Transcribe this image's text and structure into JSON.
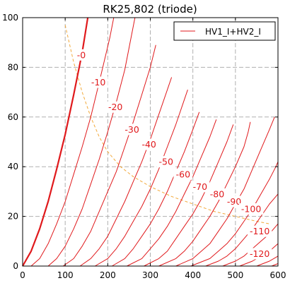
{
  "chart_data": {
    "type": "line",
    "title": "RK25,802 (triode)",
    "xlabel": "",
    "ylabel": "",
    "xlim": [
      0,
      600
    ],
    "ylim": [
      0,
      100
    ],
    "x_ticks": [
      "0",
      "100",
      "200",
      "300",
      "400",
      "500",
      "600"
    ],
    "y_ticks": [
      "0",
      "20",
      "40",
      "60",
      "80",
      "100"
    ],
    "grid": true,
    "legend": {
      "position": "top-right",
      "entries": [
        "HV1_I+HV2_I"
      ]
    },
    "colors": {
      "curves": "#e0191c",
      "load_line": "#f2a93a",
      "grid": "#b0b0b0"
    },
    "series": [
      {
        "name": "HV1_I+HV2_I",
        "grid_voltage": "-0",
        "highlight": true,
        "points": [
          [
            0,
            0
          ],
          [
            20,
            6
          ],
          [
            40,
            15
          ],
          [
            60,
            26
          ],
          [
            80,
            39
          ],
          [
            100,
            53
          ],
          [
            120,
            69
          ],
          [
            140,
            86
          ],
          [
            153,
            100
          ]
        ]
      },
      {
        "grid_voltage": "-10",
        "points": [
          [
            20,
            0
          ],
          [
            40,
            3
          ],
          [
            60,
            9
          ],
          [
            80,
            17
          ],
          [
            100,
            26
          ],
          [
            120,
            37
          ],
          [
            140,
            48
          ],
          [
            160,
            60
          ],
          [
            180,
            74
          ],
          [
            205,
            92
          ],
          [
            214,
            100
          ]
        ]
      },
      {
        "grid_voltage": "-20",
        "points": [
          [
            60,
            0
          ],
          [
            80,
            3
          ],
          [
            100,
            8
          ],
          [
            120,
            15
          ],
          [
            140,
            23
          ],
          [
            160,
            33
          ],
          [
            180,
            43
          ],
          [
            200,
            54
          ],
          [
            220,
            66
          ],
          [
            240,
            79
          ],
          [
            264,
            100
          ]
        ]
      },
      {
        "grid_voltage": "-30",
        "points": [
          [
            95,
            0
          ],
          [
            120,
            3
          ],
          [
            140,
            8
          ],
          [
            160,
            14
          ],
          [
            180,
            22
          ],
          [
            200,
            30
          ],
          [
            220,
            38
          ],
          [
            240,
            48
          ],
          [
            260,
            58
          ],
          [
            280,
            69
          ],
          [
            300,
            80
          ],
          [
            313,
            89
          ]
        ]
      },
      {
        "grid_voltage": "-40",
        "points": [
          [
            135,
            0
          ],
          [
            160,
            3
          ],
          [
            180,
            7
          ],
          [
            200,
            12
          ],
          [
            220,
            19
          ],
          [
            240,
            26
          ],
          [
            260,
            34
          ],
          [
            280,
            42
          ],
          [
            300,
            51
          ],
          [
            320,
            61
          ],
          [
            340,
            71
          ],
          [
            350,
            76
          ]
        ]
      },
      {
        "grid_voltage": "-50",
        "points": [
          [
            170,
            0
          ],
          [
            200,
            3
          ],
          [
            220,
            7
          ],
          [
            240,
            12
          ],
          [
            260,
            18
          ],
          [
            280,
            24
          ],
          [
            300,
            31
          ],
          [
            320,
            39
          ],
          [
            340,
            48
          ],
          [
            360,
            57
          ],
          [
            380,
            67
          ],
          [
            388,
            71
          ]
        ]
      },
      {
        "grid_voltage": "-60",
        "points": [
          [
            210,
            0
          ],
          [
            240,
            3
          ],
          [
            260,
            7
          ],
          [
            280,
            12
          ],
          [
            300,
            17
          ],
          [
            320,
            23
          ],
          [
            340,
            30
          ],
          [
            360,
            38
          ],
          [
            380,
            46
          ],
          [
            400,
            55
          ],
          [
            415,
            62
          ]
        ]
      },
      {
        "grid_voltage": "-70",
        "points": [
          [
            245,
            0
          ],
          [
            280,
            3
          ],
          [
            300,
            7
          ],
          [
            320,
            11
          ],
          [
            340,
            16
          ],
          [
            360,
            22
          ],
          [
            380,
            29
          ],
          [
            400,
            36
          ],
          [
            420,
            44
          ],
          [
            440,
            52
          ],
          [
            455,
            59
          ]
        ]
      },
      {
        "grid_voltage": "-80",
        "points": [
          [
            285,
            0
          ],
          [
            320,
            3
          ],
          [
            340,
            6
          ],
          [
            360,
            11
          ],
          [
            380,
            16
          ],
          [
            400,
            21
          ],
          [
            420,
            27
          ],
          [
            440,
            34
          ],
          [
            460,
            42
          ],
          [
            480,
            50
          ],
          [
            495,
            57
          ]
        ]
      },
      {
        "grid_voltage": "-90",
        "points": [
          [
            320,
            0
          ],
          [
            360,
            3
          ],
          [
            380,
            6
          ],
          [
            400,
            10
          ],
          [
            420,
            15
          ],
          [
            440,
            20
          ],
          [
            460,
            26
          ],
          [
            480,
            33
          ],
          [
            500,
            40
          ],
          [
            520,
            48
          ],
          [
            530,
            54
          ],
          [
            535,
            58
          ]
        ]
      },
      {
        "grid_voltage": "-100",
        "points": [
          [
            360,
            0
          ],
          [
            400,
            3
          ],
          [
            420,
            6
          ],
          [
            440,
            9
          ],
          [
            460,
            14
          ],
          [
            480,
            19
          ],
          [
            500,
            25
          ],
          [
            520,
            31
          ],
          [
            540,
            39
          ],
          [
            560,
            47
          ],
          [
            580,
            55
          ],
          [
            592,
            60
          ]
        ]
      },
      {
        "grid_voltage": "-110",
        "points": [
          [
            395,
            0
          ],
          [
            440,
            3
          ],
          [
            460,
            6
          ],
          [
            480,
            9
          ],
          [
            500,
            13
          ],
          [
            520,
            18
          ],
          [
            540,
            23
          ],
          [
            560,
            29
          ],
          [
            580,
            35
          ],
          [
            595,
            40
          ],
          [
            600,
            42
          ]
        ]
      },
      {
        "grid_voltage": "-120",
        "points": [
          [
            430,
            0
          ],
          [
            460,
            2
          ],
          [
            480,
            4
          ],
          [
            500,
            7
          ],
          [
            520,
            11
          ],
          [
            540,
            15
          ],
          [
            560,
            20
          ],
          [
            580,
            25
          ],
          [
            600,
            29
          ]
        ]
      },
      {
        "grid_voltage": "",
        "points": [
          [
            470,
            0
          ],
          [
            500,
            2
          ],
          [
            520,
            4
          ],
          [
            540,
            7
          ],
          [
            560,
            10
          ],
          [
            580,
            13
          ],
          [
            600,
            17
          ]
        ]
      },
      {
        "grid_voltage": "",
        "points": [
          [
            510,
            0
          ],
          [
            540,
            2
          ],
          [
            560,
            4
          ],
          [
            580,
            6
          ],
          [
            600,
            9
          ]
        ]
      },
      {
        "grid_voltage": "",
        "points": [
          [
            550,
            0
          ],
          [
            580,
            2
          ],
          [
            600,
            4
          ]
        ]
      },
      {
        "grid_voltage": "",
        "points": [
          [
            585,
            0
          ],
          [
            600,
            1
          ]
        ]
      }
    ],
    "load_line": {
      "style": "dashed",
      "points": [
        [
          100,
          97
        ],
        [
          120,
          82
        ],
        [
          140,
          70
        ],
        [
          160,
          60
        ],
        [
          180,
          52
        ],
        [
          200,
          46
        ],
        [
          230,
          40
        ],
        [
          260,
          36
        ],
        [
          300,
          32
        ],
        [
          350,
          28
        ],
        [
          400,
          25
        ],
        [
          450,
          22
        ],
        [
          500,
          20
        ],
        [
          550,
          18
        ],
        [
          580,
          17
        ]
      ]
    },
    "curve_labels": [
      {
        "text": "-0",
        "x": 138,
        "y": 85
      },
      {
        "text": "-10",
        "x": 178,
        "y": 74
      },
      {
        "text": "-20",
        "x": 218,
        "y": 64
      },
      {
        "text": "-30",
        "x": 257,
        "y": 55
      },
      {
        "text": "-40",
        "x": 297,
        "y": 49
      },
      {
        "text": "-50",
        "x": 337,
        "y": 42
      },
      {
        "text": "-60",
        "x": 377,
        "y": 37
      },
      {
        "text": "-70",
        "x": 417,
        "y": 32
      },
      {
        "text": "-80",
        "x": 457,
        "y": 29
      },
      {
        "text": "-90",
        "x": 497,
        "y": 26
      },
      {
        "text": "-100",
        "x": 537,
        "y": 23
      },
      {
        "text": "-110",
        "x": 557,
        "y": 14
      },
      {
        "text": "-120",
        "x": 557,
        "y": 5
      }
    ]
  }
}
